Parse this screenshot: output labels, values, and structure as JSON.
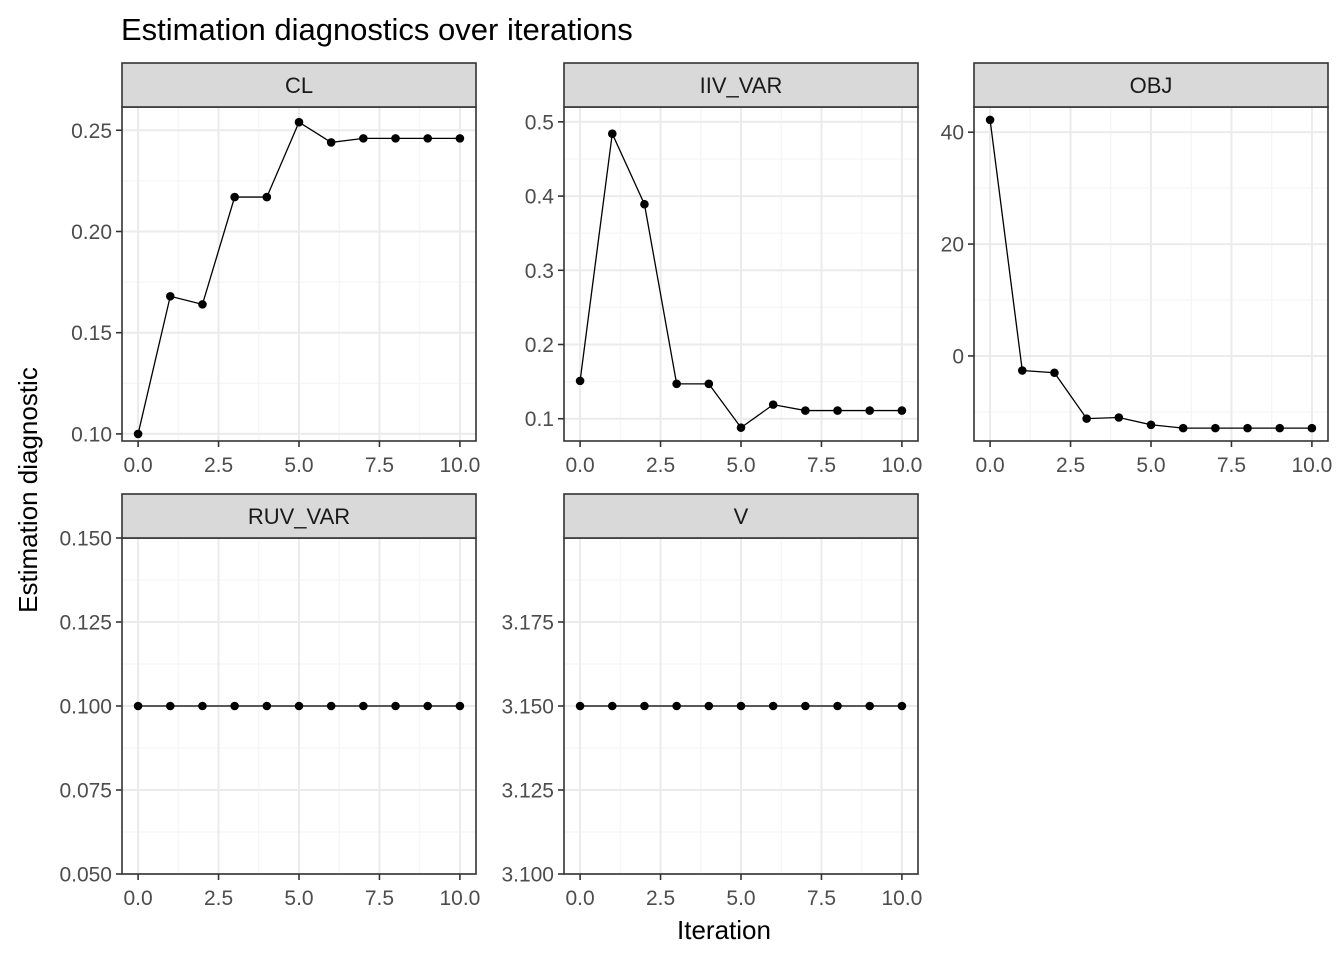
{
  "chart_data": {
    "type": "line",
    "title": "Estimation diagnostics over iterations",
    "xlabel": "Iteration",
    "ylabel": "Estimation diagnostic",
    "grid": true,
    "legend": "none",
    "colors": {
      "line": "#000000",
      "point": "#000000",
      "strip_fill": "#d9d9d9",
      "grid_major": "#ebebeb",
      "grid_minor": "#f5f5f5",
      "panel_border": "#333333"
    },
    "panels": [
      {
        "name": "CL",
        "x": [
          0,
          1,
          2,
          3,
          4,
          5,
          6,
          7,
          8,
          9,
          10
        ],
        "y": [
          0.1,
          0.168,
          0.164,
          0.217,
          0.217,
          0.254,
          0.244,
          0.246,
          0.246,
          0.246,
          0.246
        ],
        "xlim": [
          -0.5,
          10.5
        ],
        "ylim": [
          0.0965,
          0.2615
        ],
        "xticks": [
          0,
          2.5,
          5,
          7.5,
          10
        ],
        "xtick_labels": [
          "0.0",
          "2.5",
          "5.0",
          "7.5",
          "10.0"
        ],
        "yticks": [
          0.1,
          0.15,
          0.2,
          0.25
        ],
        "ytick_labels": [
          "0.10",
          "0.15",
          "0.20",
          "0.25"
        ]
      },
      {
        "name": "IIV_VAR",
        "x": [
          0,
          1,
          2,
          3,
          4,
          5,
          6,
          7,
          8,
          9,
          10
        ],
        "y": [
          0.151,
          0.484,
          0.389,
          0.147,
          0.147,
          0.088,
          0.119,
          0.111,
          0.111,
          0.111,
          0.111
        ],
        "xlim": [
          -0.5,
          10.5
        ],
        "ylim": [
          0.07,
          0.52
        ],
        "xticks": [
          0,
          2.5,
          5,
          7.5,
          10
        ],
        "xtick_labels": [
          "0.0",
          "2.5",
          "5.0",
          "7.5",
          "10.0"
        ],
        "yticks": [
          0.1,
          0.2,
          0.3,
          0.4,
          0.5
        ],
        "ytick_labels": [
          "0.1",
          "0.2",
          "0.3",
          "0.4",
          "0.5"
        ]
      },
      {
        "name": "OBJ",
        "x": [
          0,
          1,
          2,
          3,
          4,
          5,
          6,
          7,
          8,
          9,
          10
        ],
        "y": [
          42.2,
          -2.6,
          -3.0,
          -11.2,
          -11.0,
          -12.3,
          -12.9,
          -12.9,
          -12.9,
          -12.9,
          -12.9
        ],
        "xlim": [
          -0.5,
          10.5
        ],
        "ylim": [
          -15.2,
          44.5
        ],
        "xticks": [
          0,
          2.5,
          5,
          7.5,
          10
        ],
        "xtick_labels": [
          "0.0",
          "2.5",
          "5.0",
          "7.5",
          "10.0"
        ],
        "yticks": [
          0,
          20,
          40
        ],
        "ytick_labels": [
          "0",
          "20",
          "40"
        ]
      },
      {
        "name": "RUV_VAR",
        "x": [
          0,
          1,
          2,
          3,
          4,
          5,
          6,
          7,
          8,
          9,
          10
        ],
        "y": [
          0.1,
          0.1,
          0.1,
          0.1,
          0.1,
          0.1,
          0.1,
          0.1,
          0.1,
          0.1,
          0.1
        ],
        "xlim": [
          -0.5,
          10.5
        ],
        "ylim": [
          0.05,
          0.15
        ],
        "xticks": [
          0,
          2.5,
          5,
          7.5,
          10
        ],
        "xtick_labels": [
          "0.0",
          "2.5",
          "5.0",
          "7.5",
          "10.0"
        ],
        "yticks": [
          0.05,
          0.075,
          0.1,
          0.125,
          0.15
        ],
        "ytick_labels": [
          "0.050",
          "0.075",
          "0.100",
          "0.125",
          "0.150"
        ]
      },
      {
        "name": "V",
        "x": [
          0,
          1,
          2,
          3,
          4,
          5,
          6,
          7,
          8,
          9,
          10
        ],
        "y": [
          3.15,
          3.15,
          3.15,
          3.15,
          3.15,
          3.15,
          3.15,
          3.15,
          3.15,
          3.15,
          3.15
        ],
        "xlim": [
          -0.5,
          10.5
        ],
        "ylim": [
          3.1,
          3.2
        ],
        "xticks": [
          0,
          2.5,
          5,
          7.5,
          10
        ],
        "xtick_labels": [
          "0.0",
          "2.5",
          "5.0",
          "7.5",
          "10.0"
        ],
        "yticks": [
          3.1,
          3.125,
          3.15,
          3.175
        ],
        "ytick_labels": [
          "3.100",
          "3.125",
          "3.150",
          "3.175"
        ]
      }
    ]
  }
}
